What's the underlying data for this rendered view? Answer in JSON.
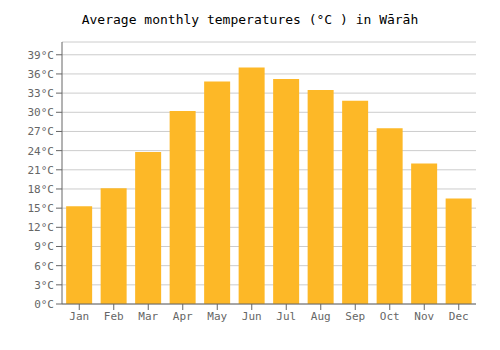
{
  "chart_data": {
    "type": "bar",
    "title": "Average monthly temperatures (°C ) in Wārāh",
    "categories": [
      "Jan",
      "Feb",
      "Mar",
      "Apr",
      "May",
      "Jun",
      "Jul",
      "Aug",
      "Sep",
      "Oct",
      "Nov",
      "Dec"
    ],
    "values": [
      15.3,
      18.1,
      23.8,
      30.2,
      34.8,
      37.0,
      35.2,
      33.5,
      31.8,
      27.5,
      22.0,
      16.5
    ],
    "color": "#FDB827",
    "ylim": [
      0,
      41
    ],
    "yticks": [
      {
        "value": 0,
        "label": "0°C"
      },
      {
        "value": 3,
        "label": "3°C"
      },
      {
        "value": 6,
        "label": "6°C"
      },
      {
        "value": 9,
        "label": "9°C"
      },
      {
        "value": 12,
        "label": "12°C"
      },
      {
        "value": 15,
        "label": "15°C"
      },
      {
        "value": 18,
        "label": "18°C"
      },
      {
        "value": 21,
        "label": "21°C"
      },
      {
        "value": 24,
        "label": "24°C"
      },
      {
        "value": 27,
        "label": "27°C"
      },
      {
        "value": 30,
        "label": "30°C"
      },
      {
        "value": 33,
        "label": "33°C"
      },
      {
        "value": 36,
        "label": "36°C"
      },
      {
        "value": 39,
        "label": "39°C"
      }
    ],
    "grid": true
  }
}
